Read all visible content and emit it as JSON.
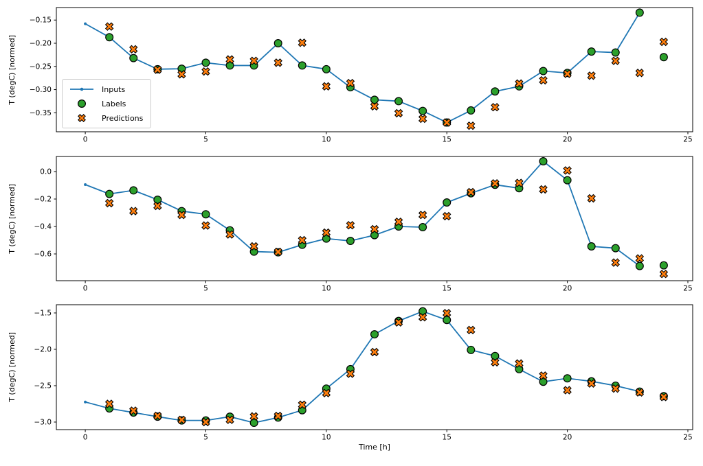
{
  "figure": {
    "xlabel": "Time [h]",
    "ylabel": "T (degC) [normed]",
    "legend": {
      "items": [
        {
          "label": "Inputs",
          "marker": "line-dot-icon",
          "color": "#1f77b4"
        },
        {
          "label": "Labels",
          "marker": "circle-icon",
          "color": "#2ca02c"
        },
        {
          "label": "Predictions",
          "marker": "x-icon",
          "color": "#ff7f0e"
        }
      ]
    },
    "colors": {
      "inputs": "#1f77b4",
      "labels": "#2ca02c",
      "predictions": "#ff7f0e",
      "marker_edge": "#000000",
      "spine": "#000000"
    }
  },
  "chart_data": [
    {
      "type": "line",
      "title": "",
      "ylabel": "T (degC) [normed]",
      "xlim": [
        -1.2,
        25.2
      ],
      "ylim": [
        -0.391,
        -0.123
      ],
      "xticks": [
        0,
        5,
        10,
        15,
        20,
        25
      ],
      "ytick_values": [
        -0.15,
        -0.2,
        -0.25,
        -0.3,
        -0.35
      ],
      "ytick_labels": [
        "−0.15",
        "−0.20",
        "−0.25",
        "−0.30",
        "−0.35"
      ],
      "legend_visible": true,
      "series": [
        {
          "name": "Inputs",
          "style": "line-dot",
          "x": [
            0,
            1,
            2,
            3,
            4,
            5,
            6,
            7,
            8,
            9,
            10,
            11,
            12,
            13,
            14,
            15,
            16,
            17,
            18,
            19,
            20,
            21,
            22,
            23
          ],
          "y": [
            -0.158,
            -0.187,
            -0.232,
            -0.256,
            -0.255,
            -0.242,
            -0.248,
            -0.248,
            -0.2,
            -0.248,
            -0.256,
            -0.295,
            -0.322,
            -0.325,
            -0.346,
            -0.371,
            -0.345,
            -0.304,
            -0.293,
            -0.26,
            -0.264,
            -0.218,
            -0.22,
            -0.134
          ]
        },
        {
          "name": "Labels",
          "style": "circle",
          "x": [
            1,
            2,
            3,
            4,
            5,
            6,
            7,
            8,
            9,
            10,
            11,
            12,
            13,
            14,
            15,
            16,
            17,
            18,
            19,
            20,
            21,
            22,
            23,
            24
          ],
          "y": [
            -0.187,
            -0.232,
            -0.256,
            -0.255,
            -0.242,
            -0.248,
            -0.248,
            -0.2,
            -0.248,
            -0.256,
            -0.295,
            -0.322,
            -0.325,
            -0.346,
            -0.371,
            -0.345,
            -0.304,
            -0.293,
            -0.26,
            -0.264,
            -0.218,
            -0.22,
            -0.134,
            -0.23
          ]
        },
        {
          "name": "Predictions",
          "style": "x",
          "x": [
            1,
            2,
            3,
            4,
            5,
            6,
            7,
            8,
            9,
            10,
            11,
            12,
            13,
            14,
            15,
            16,
            17,
            18,
            19,
            20,
            21,
            22,
            23,
            24
          ],
          "y": [
            -0.164,
            -0.213,
            -0.257,
            -0.267,
            -0.261,
            -0.235,
            -0.238,
            -0.242,
            -0.199,
            -0.293,
            -0.286,
            -0.336,
            -0.351,
            -0.363,
            -0.371,
            -0.378,
            -0.338,
            -0.287,
            -0.28,
            -0.266,
            -0.27,
            -0.238,
            -0.264,
            -0.197
          ]
        }
      ]
    },
    {
      "type": "line",
      "title": "",
      "ylabel": "T (degC) [normed]",
      "xlim": [
        -1.2,
        25.2
      ],
      "ylim": [
        -0.795,
        0.11
      ],
      "xticks": [
        0,
        5,
        10,
        15,
        20,
        25
      ],
      "ytick_values": [
        0.0,
        -0.2,
        -0.4,
        -0.6
      ],
      "ytick_labels": [
        "0.0",
        "−0.2",
        "−0.4",
        "−0.6"
      ],
      "legend_visible": false,
      "series": [
        {
          "name": "Inputs",
          "style": "line-dot",
          "x": [
            0,
            1,
            2,
            3,
            4,
            5,
            6,
            7,
            8,
            9,
            10,
            11,
            12,
            13,
            14,
            15,
            16,
            17,
            18,
            19,
            20,
            21,
            22,
            23
          ],
          "y": [
            -0.095,
            -0.163,
            -0.137,
            -0.205,
            -0.288,
            -0.311,
            -0.428,
            -0.583,
            -0.588,
            -0.533,
            -0.488,
            -0.505,
            -0.463,
            -0.4,
            -0.405,
            -0.225,
            -0.158,
            -0.096,
            -0.121,
            0.075,
            -0.063,
            -0.545,
            -0.558,
            -0.688
          ]
        },
        {
          "name": "Labels",
          "style": "circle",
          "x": [
            1,
            2,
            3,
            4,
            5,
            6,
            7,
            8,
            9,
            10,
            11,
            12,
            13,
            14,
            15,
            16,
            17,
            18,
            19,
            20,
            21,
            22,
            23,
            24
          ],
          "y": [
            -0.163,
            -0.137,
            -0.205,
            -0.288,
            -0.311,
            -0.428,
            -0.583,
            -0.588,
            -0.533,
            -0.488,
            -0.505,
            -0.463,
            -0.4,
            -0.405,
            -0.225,
            -0.158,
            -0.096,
            -0.121,
            0.075,
            -0.063,
            -0.545,
            -0.558,
            -0.688,
            -0.683
          ]
        },
        {
          "name": "Predictions",
          "style": "x",
          "x": [
            1,
            2,
            3,
            4,
            5,
            6,
            7,
            8,
            9,
            10,
            11,
            12,
            13,
            14,
            15,
            16,
            17,
            18,
            19,
            20,
            21,
            22,
            23,
            24
          ],
          "y": [
            -0.23,
            -0.288,
            -0.25,
            -0.316,
            -0.393,
            -0.458,
            -0.545,
            -0.585,
            -0.5,
            -0.445,
            -0.391,
            -0.42,
            -0.366,
            -0.316,
            -0.325,
            -0.15,
            -0.086,
            -0.083,
            -0.13,
            0.008,
            -0.195,
            -0.663,
            -0.633,
            -0.746
          ]
        }
      ]
    },
    {
      "type": "line",
      "title": "",
      "ylabel": "T (degC) [normed]",
      "xlabel": "Time [h]",
      "xlim": [
        -1.2,
        25.2
      ],
      "ylim": [
        -3.104,
        -1.387
      ],
      "xticks": [
        0,
        5,
        10,
        15,
        20,
        25
      ],
      "ytick_values": [
        -1.5,
        -2.0,
        -2.5,
        -3.0
      ],
      "ytick_labels": [
        "−1.5",
        "−2.0",
        "−2.5",
        "−3.0"
      ],
      "legend_visible": false,
      "series": [
        {
          "name": "Inputs",
          "style": "line-dot",
          "x": [
            0,
            1,
            2,
            3,
            4,
            5,
            6,
            7,
            8,
            9,
            10,
            11,
            12,
            13,
            14,
            15,
            16,
            17,
            18,
            19,
            20,
            21,
            22,
            23
          ],
          "y": [
            -2.724,
            -2.813,
            -2.869,
            -2.926,
            -2.978,
            -2.978,
            -2.926,
            -3.01,
            -2.938,
            -2.837,
            -2.54,
            -2.273,
            -1.794,
            -1.61,
            -1.478,
            -1.597,
            -2.008,
            -2.092,
            -2.273,
            -2.446,
            -2.399,
            -2.44,
            -2.5,
            -2.581
          ]
        },
        {
          "name": "Labels",
          "style": "circle",
          "x": [
            1,
            2,
            3,
            4,
            5,
            6,
            7,
            8,
            9,
            10,
            11,
            12,
            13,
            14,
            15,
            16,
            17,
            18,
            19,
            20,
            21,
            22,
            23,
            24
          ],
          "y": [
            -2.813,
            -2.869,
            -2.926,
            -2.978,
            -2.978,
            -2.926,
            -3.01,
            -2.938,
            -2.837,
            -2.54,
            -2.273,
            -1.794,
            -1.61,
            -1.478,
            -1.597,
            -2.008,
            -2.092,
            -2.273,
            -2.446,
            -2.399,
            -2.44,
            -2.5,
            -2.581,
            -2.644
          ]
        },
        {
          "name": "Predictions",
          "style": "x",
          "x": [
            1,
            2,
            3,
            4,
            5,
            6,
            7,
            8,
            9,
            10,
            11,
            12,
            13,
            14,
            15,
            16,
            17,
            18,
            19,
            20,
            21,
            22,
            23,
            24
          ],
          "y": [
            -2.75,
            -2.844,
            -2.915,
            -2.97,
            -3.0,
            -2.969,
            -2.922,
            -2.916,
            -2.762,
            -2.602,
            -2.336,
            -2.038,
            -1.63,
            -1.559,
            -1.503,
            -1.735,
            -2.179,
            -2.195,
            -2.362,
            -2.562,
            -2.47,
            -2.54,
            -2.592,
            -2.655
          ]
        }
      ]
    }
  ]
}
